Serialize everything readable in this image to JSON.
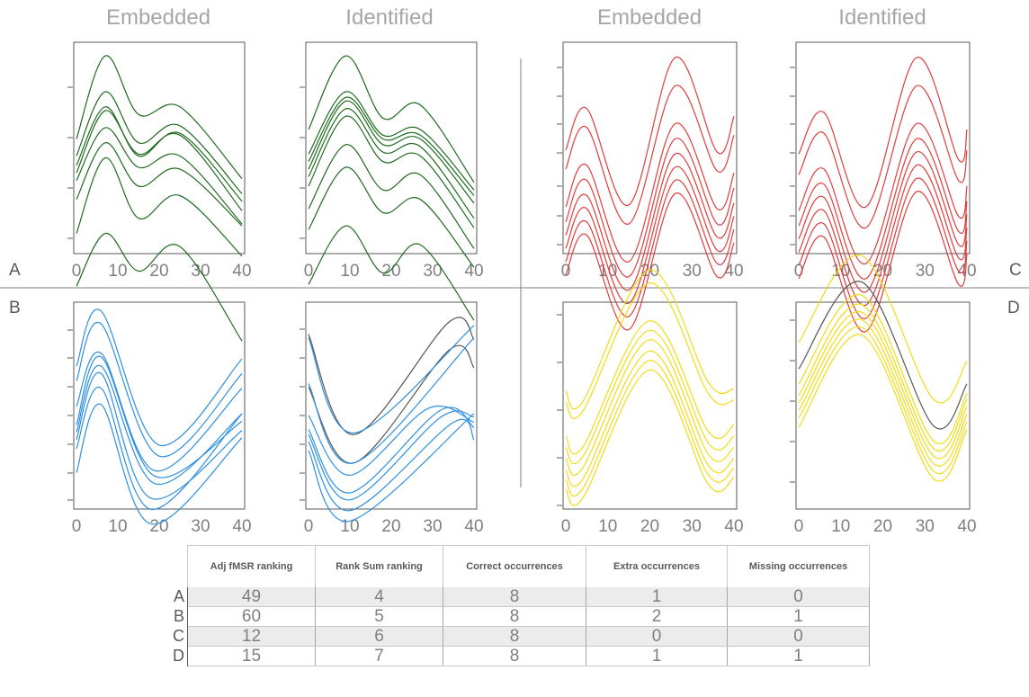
{
  "figure": {
    "headers": [
      "Embedded",
      "Identified",
      "Embedded",
      "Identified"
    ],
    "quadrant_labels": {
      "a": "A",
      "b": "B",
      "c": "C",
      "d": "D"
    }
  },
  "colors": {
    "green": "#1e6b1e",
    "blue": "#2e8fe0",
    "red": "#e03c3c",
    "yellow": "#f2dc16",
    "gray": "#555555",
    "axis": "#595959",
    "divider": "#7f7f7f"
  },
  "chart_data": [
    {
      "type": "line",
      "panel": "A-embedded",
      "color": "green",
      "xticks": [
        0,
        10,
        20,
        30,
        40
      ],
      "xlim": [
        0,
        40
      ],
      "series": [
        {
          "x": [
            0,
            7,
            15,
            25,
            40
          ],
          "y": [
            0.55,
            0.99,
            0.68,
            0.72,
            0.34
          ]
        },
        {
          "x": [
            0,
            7,
            15,
            25,
            40
          ],
          "y": [
            0.46,
            0.8,
            0.53,
            0.62,
            0.26
          ]
        },
        {
          "x": [
            0,
            7,
            15,
            25,
            40
          ],
          "y": [
            0.41,
            0.72,
            0.46,
            0.58,
            0.22
          ]
        },
        {
          "x": [
            0,
            7,
            15,
            25,
            40
          ],
          "y": [
            0.37,
            0.7,
            0.47,
            0.57,
            0.17
          ]
        },
        {
          "x": [
            0,
            7,
            15,
            25,
            40
          ],
          "y": [
            0.33,
            0.61,
            0.4,
            0.46,
            0.1
          ]
        },
        {
          "x": [
            0,
            7,
            15,
            25,
            40
          ],
          "y": [
            0.23,
            0.53,
            0.3,
            0.39,
            0.09
          ]
        },
        {
          "x": [
            0,
            7,
            15,
            25,
            40
          ],
          "y": [
            0.05,
            0.45,
            0.13,
            0.25,
            -0.07
          ]
        },
        {
          "x": [
            0,
            7,
            15,
            25,
            40
          ],
          "y": [
            -0.23,
            0.05,
            -0.15,
            -0.02,
            -0.52
          ]
        }
      ]
    },
    {
      "type": "line",
      "panel": "A-identified",
      "color": "green",
      "xticks": [
        0,
        10,
        20,
        30,
        40
      ],
      "xlim": [
        0,
        40
      ],
      "series": [
        {
          "x": [
            0,
            9,
            18,
            27,
            40
          ],
          "y": [
            0.6,
            0.99,
            0.66,
            0.73,
            0.32
          ]
        },
        {
          "x": [
            0,
            9,
            18,
            27,
            40
          ],
          "y": [
            0.47,
            0.8,
            0.57,
            0.6,
            0.28
          ]
        },
        {
          "x": [
            0,
            9,
            18,
            27,
            40
          ],
          "y": [
            0.43,
            0.77,
            0.55,
            0.57,
            0.25
          ]
        },
        {
          "x": [
            0,
            9,
            18,
            27,
            40
          ],
          "y": [
            0.39,
            0.75,
            0.52,
            0.55,
            0.21
          ]
        },
        {
          "x": [
            0,
            9,
            18,
            27,
            40
          ],
          "y": [
            0.35,
            0.71,
            0.48,
            0.51,
            0.13
          ]
        },
        {
          "x": [
            0,
            9,
            18,
            27,
            40
          ],
          "y": [
            0.3,
            0.67,
            0.43,
            0.46,
            0.08
          ]
        },
        {
          "x": [
            0,
            9,
            18,
            27,
            40
          ],
          "y": [
            0.18,
            0.52,
            0.28,
            0.36,
            -0.03
          ]
        },
        {
          "x": [
            0,
            9,
            18,
            27,
            40
          ],
          "y": [
            0.07,
            0.4,
            0.16,
            0.23,
            -0.13
          ]
        },
        {
          "x": [
            0,
            9,
            18,
            27,
            40
          ],
          "y": [
            -0.22,
            0.09,
            -0.16,
            -0.01,
            -0.41
          ]
        }
      ]
    },
    {
      "type": "line",
      "panel": "C-embedded",
      "color": "red",
      "xticks": [
        0,
        10,
        20,
        30,
        40
      ],
      "xlim": [
        0,
        40
      ],
      "series": [
        {
          "x": [
            0,
            5,
            15,
            26,
            36,
            40
          ],
          "y": [
            0.5,
            0.72,
            0.21,
            0.99,
            0.49,
            0.68
          ]
        },
        {
          "x": [
            0,
            5,
            15,
            26,
            36,
            40
          ],
          "y": [
            0.4,
            0.62,
            0.11,
            0.84,
            0.39,
            0.58
          ]
        },
        {
          "x": [
            0,
            5,
            15,
            26,
            36,
            40
          ],
          "y": [
            0.2,
            0.42,
            -0.09,
            0.64,
            0.19,
            0.38
          ]
        },
        {
          "x": [
            0,
            5,
            15,
            26,
            36,
            40
          ],
          "y": [
            0.12,
            0.34,
            -0.17,
            0.56,
            0.11,
            0.3
          ]
        },
        {
          "x": [
            0,
            5,
            15,
            26,
            36,
            40
          ],
          "y": [
            0.05,
            0.26,
            -0.24,
            0.48,
            0.04,
            0.22
          ]
        },
        {
          "x": [
            0,
            5,
            15,
            26,
            36,
            40
          ],
          "y": [
            -0.02,
            0.19,
            -0.31,
            0.41,
            -0.03,
            0.15
          ]
        },
        {
          "x": [
            0,
            5,
            15,
            26,
            36,
            40
          ],
          "y": [
            -0.09,
            0.12,
            -0.38,
            0.34,
            -0.1,
            0.08
          ]
        },
        {
          "x": [
            0,
            5,
            15,
            26,
            36,
            40
          ],
          "y": [
            -0.16,
            0.05,
            -0.45,
            0.27,
            -0.17,
            0.01
          ]
        }
      ]
    },
    {
      "type": "line",
      "panel": "C-identified",
      "color": "red",
      "xticks": [
        0,
        10,
        20,
        30,
        40
      ],
      "xlim": [
        0,
        40
      ],
      "series": [
        {
          "x": [
            0,
            6,
            16,
            28,
            38,
            40
          ],
          "y": [
            0.48,
            0.7,
            0.2,
            0.99,
            0.45,
            0.61
          ]
        },
        {
          "x": [
            0,
            6,
            16,
            28,
            38,
            40
          ],
          "y": [
            0.37,
            0.59,
            0.09,
            0.84,
            0.34,
            0.5
          ]
        },
        {
          "x": [
            0,
            6,
            16,
            28,
            38,
            40
          ],
          "y": [
            0.18,
            0.4,
            -0.1,
            0.64,
            0.15,
            0.31
          ]
        },
        {
          "x": [
            0,
            6,
            16,
            28,
            38,
            40
          ],
          "y": [
            0.1,
            0.32,
            -0.18,
            0.56,
            0.07,
            0.23
          ]
        },
        {
          "x": [
            0,
            6,
            16,
            28,
            38,
            40
          ],
          "y": [
            0.03,
            0.25,
            -0.25,
            0.49,
            0.0,
            0.16
          ]
        },
        {
          "x": [
            0,
            6,
            16,
            28,
            38,
            40
          ],
          "y": [
            -0.04,
            0.18,
            -0.32,
            0.42,
            -0.07,
            0.09
          ]
        },
        {
          "x": [
            0,
            6,
            16,
            28,
            38,
            40
          ],
          "y": [
            -0.11,
            0.11,
            -0.39,
            0.35,
            -0.14,
            0.02
          ]
        },
        {
          "x": [
            0,
            6,
            16,
            28,
            38,
            40
          ],
          "y": [
            -0.18,
            0.04,
            -0.46,
            0.28,
            -0.21,
            -0.05
          ]
        }
      ]
    },
    {
      "type": "line",
      "panel": "B-embedded",
      "color": "blue",
      "xticks": [
        0,
        10,
        20,
        30,
        40
      ],
      "xlim": [
        0,
        40
      ],
      "series": [
        {
          "x": [
            0,
            6,
            20,
            40
          ],
          "y": [
            0.7,
            1.0,
            0.27,
            0.74
          ]
        },
        {
          "x": [
            0,
            6,
            20,
            40
          ],
          "y": [
            0.62,
            0.93,
            0.21,
            0.66
          ]
        },
        {
          "x": [
            0,
            6,
            19,
            40
          ],
          "y": [
            0.48,
            0.77,
            0.13,
            0.58
          ]
        },
        {
          "x": [
            0,
            6,
            19,
            40
          ],
          "y": [
            0.38,
            0.75,
            0.1,
            0.4
          ]
        },
        {
          "x": [
            0,
            6,
            19,
            40
          ],
          "y": [
            0.34,
            0.7,
            0.06,
            0.44
          ]
        },
        {
          "x": [
            0,
            6,
            18,
            40
          ],
          "y": [
            0.3,
            0.66,
            -0.02,
            0.35
          ]
        },
        {
          "x": [
            0,
            6,
            18,
            40
          ],
          "y": [
            0.25,
            0.58,
            -0.08,
            0.44
          ]
        },
        {
          "x": [
            0,
            6,
            18,
            40
          ],
          "y": [
            0.12,
            0.49,
            -0.16,
            0.31
          ]
        }
      ]
    },
    {
      "type": "line",
      "panel": "B-identified",
      "color": "blue",
      "xticks": [
        0,
        10,
        20,
        30,
        40
      ],
      "xlim": [
        0,
        40
      ],
      "series": [
        {
          "x": [
            0,
            11,
            34,
            40
          ],
          "y": [
            0.9,
            0.33,
            0.97,
            0.87
          ],
          "color": "gray"
        },
        {
          "x": [
            0,
            11,
            34,
            40
          ],
          "y": [
            0.6,
            0.17,
            0.81,
            0.71
          ],
          "color": "gray"
        },
        {
          "x": [
            0,
            11,
            40
          ],
          "y": [
            0.88,
            0.34,
            0.95
          ]
        },
        {
          "x": [
            0,
            11,
            40
          ],
          "y": [
            0.62,
            0.17,
            0.88
          ]
        },
        {
          "x": [
            0,
            10,
            29,
            40
          ],
          "y": [
            0.44,
            0.1,
            0.48,
            0.4
          ]
        },
        {
          "x": [
            0,
            10,
            32,
            40
          ],
          "y": [
            0.36,
            0.0,
            0.47,
            0.37
          ]
        },
        {
          "x": [
            0,
            10,
            32,
            40
          ],
          "y": [
            0.33,
            -0.04,
            0.43,
            0.43
          ]
        },
        {
          "x": [
            0,
            10,
            35,
            40
          ],
          "y": [
            0.29,
            -0.1,
            0.4,
            0.3
          ]
        },
        {
          "x": [
            0,
            10,
            40
          ],
          "y": [
            0.24,
            -0.16,
            0.45
          ]
        }
      ]
    },
    {
      "type": "line",
      "panel": "D-embedded",
      "color": "yellow",
      "xticks": [
        0,
        10,
        20,
        30,
        40
      ],
      "xlim": [
        0,
        40
      ],
      "series": [
        {
          "x": [
            0,
            4,
            20,
            34,
            40
          ],
          "y": [
            0.36,
            0.3,
            1.0,
            0.4,
            0.37
          ]
        },
        {
          "x": [
            0,
            4,
            20,
            34,
            40
          ],
          "y": [
            0.3,
            0.25,
            0.93,
            0.34,
            0.31
          ]
        },
        {
          "x": [
            0,
            4,
            20,
            34,
            40
          ],
          "y": [
            0.12,
            0.06,
            0.73,
            0.14,
            0.18
          ]
        },
        {
          "x": [
            0,
            4,
            20,
            34,
            40
          ],
          "y": [
            0.06,
            0.01,
            0.68,
            0.08,
            0.12
          ]
        },
        {
          "x": [
            0,
            4,
            20,
            34,
            40
          ],
          "y": [
            0.0,
            -0.05,
            0.63,
            0.02,
            0.06
          ]
        },
        {
          "x": [
            0,
            4,
            20,
            34,
            40
          ],
          "y": [
            -0.06,
            -0.11,
            0.57,
            -0.04,
            0.0
          ]
        },
        {
          "x": [
            0,
            4,
            20,
            34,
            40
          ],
          "y": [
            -0.11,
            -0.16,
            0.52,
            -0.09,
            -0.05
          ]
        },
        {
          "x": [
            0,
            4,
            20,
            34,
            40
          ],
          "y": [
            -0.16,
            -0.21,
            0.47,
            -0.14,
            -0.1
          ]
        }
      ]
    },
    {
      "type": "line",
      "panel": "D-identified",
      "color": "yellow",
      "xticks": [
        0,
        10,
        20,
        30,
        40
      ],
      "xlim": [
        0,
        40
      ],
      "series": [
        {
          "x": [
            0,
            15,
            32,
            40
          ],
          "y": [
            0.52,
            0.98,
            0.22,
            0.42
          ]
        },
        {
          "x": [
            0,
            15,
            32,
            40
          ],
          "y": [
            0.38,
            0.84,
            0.08,
            0.3
          ],
          "color": "gray"
        },
        {
          "x": [
            0,
            15,
            32,
            40
          ],
          "y": [
            0.3,
            0.77,
            0.0,
            0.25
          ]
        },
        {
          "x": [
            0,
            15,
            32,
            40
          ],
          "y": [
            0.24,
            0.72,
            -0.04,
            0.22
          ]
        },
        {
          "x": [
            0,
            15,
            32,
            40
          ],
          "y": [
            0.2,
            0.68,
            -0.08,
            0.18
          ]
        },
        {
          "x": [
            0,
            15,
            32,
            40
          ],
          "y": [
            0.16,
            0.64,
            -0.12,
            0.14
          ]
        },
        {
          "x": [
            0,
            15,
            32,
            40
          ],
          "y": [
            0.12,
            0.6,
            -0.16,
            0.1
          ]
        },
        {
          "x": [
            0,
            15,
            32,
            40
          ],
          "y": [
            0.07,
            0.56,
            -0.2,
            0.06
          ]
        }
      ]
    },
    {
      "type": "table",
      "columns": [
        "Adj fMSR ranking",
        "Rank Sum ranking",
        "Correct occurrences",
        "Extra occurrences",
        "Missing occurrences"
      ],
      "rows": [
        {
          "label": "A",
          "values": [
            "49",
            "4",
            "8",
            "1",
            "0"
          ]
        },
        {
          "label": "B",
          "values": [
            "60",
            "5",
            "8",
            "2",
            "1"
          ]
        },
        {
          "label": "C",
          "values": [
            "12",
            "6",
            "8",
            "0",
            "0"
          ]
        },
        {
          "label": "D",
          "values": [
            "15",
            "7",
            "8",
            "1",
            "1"
          ]
        }
      ]
    }
  ]
}
